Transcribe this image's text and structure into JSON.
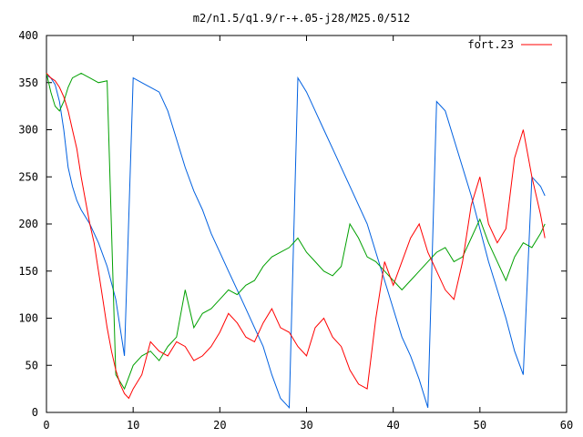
{
  "chart_data": {
    "type": "line",
    "title": "m2/n1.5/q1.9/r-+.05-j28/M25.0/512",
    "xlabel": "",
    "ylabel": "",
    "xlim": [
      0,
      60
    ],
    "ylim": [
      0,
      400
    ],
    "xticks": [
      0,
      10,
      20,
      30,
      40,
      50,
      60
    ],
    "yticks": [
      0,
      50,
      100,
      150,
      200,
      250,
      300,
      350,
      400
    ],
    "grid": false,
    "legend": {
      "placement": "top-right",
      "entries": [
        "fort.23"
      ]
    },
    "series": [
      {
        "name": "fort.23",
        "color": "#ff0000",
        "points": [
          [
            0,
            360
          ],
          [
            0.5,
            355
          ],
          [
            1.0,
            352
          ],
          [
            1.5,
            345
          ],
          [
            2.0,
            335
          ],
          [
            2.5,
            320
          ],
          [
            3.0,
            300
          ],
          [
            3.5,
            280
          ],
          [
            4.0,
            250
          ],
          [
            4.5,
            225
          ],
          [
            5.0,
            200
          ],
          [
            5.5,
            180
          ],
          [
            6.0,
            150
          ],
          [
            6.5,
            120
          ],
          [
            7.0,
            90
          ],
          [
            7.5,
            65
          ],
          [
            8.0,
            45
          ],
          [
            8.5,
            30
          ],
          [
            9.0,
            20
          ],
          [
            9.5,
            15
          ],
          [
            10.0,
            25
          ],
          [
            11.0,
            40
          ],
          [
            12.0,
            75
          ],
          [
            13.0,
            65
          ],
          [
            14.0,
            60
          ],
          [
            15.0,
            75
          ],
          [
            16.0,
            70
          ],
          [
            17.0,
            55
          ],
          [
            18.0,
            60
          ],
          [
            19.0,
            70
          ],
          [
            20.0,
            85
          ],
          [
            21.0,
            105
          ],
          [
            22.0,
            95
          ],
          [
            23.0,
            80
          ],
          [
            24.0,
            75
          ],
          [
            25.0,
            95
          ],
          [
            26.0,
            110
          ],
          [
            27.0,
            90
          ],
          [
            28.0,
            85
          ],
          [
            29.0,
            70
          ],
          [
            30.0,
            60
          ],
          [
            31.0,
            90
          ],
          [
            32.0,
            100
          ],
          [
            33.0,
            80
          ],
          [
            34.0,
            70
          ],
          [
            35.0,
            45
          ],
          [
            36.0,
            30
          ],
          [
            37.0,
            25
          ],
          [
            38.0,
            100
          ],
          [
            39.0,
            160
          ],
          [
            40.0,
            135
          ],
          [
            41.0,
            160
          ],
          [
            42.0,
            185
          ],
          [
            43.0,
            200
          ],
          [
            44.0,
            170
          ],
          [
            45.0,
            150
          ],
          [
            46.0,
            130
          ],
          [
            47.0,
            120
          ],
          [
            48.0,
            160
          ],
          [
            49.0,
            220
          ],
          [
            50.0,
            250
          ],
          [
            51.0,
            200
          ],
          [
            52.0,
            180
          ],
          [
            53.0,
            195
          ],
          [
            54.0,
            270
          ],
          [
            55.0,
            300
          ],
          [
            56.0,
            250
          ],
          [
            57.0,
            210
          ],
          [
            57.5,
            185
          ]
        ]
      },
      {
        "name": "",
        "color": "#00a000",
        "points": [
          [
            0,
            360
          ],
          [
            0.5,
            340
          ],
          [
            1.0,
            325
          ],
          [
            1.5,
            320
          ],
          [
            2.0,
            330
          ],
          [
            2.5,
            345
          ],
          [
            3.0,
            355
          ],
          [
            4.0,
            360
          ],
          [
            5.0,
            355
          ],
          [
            6.0,
            350
          ],
          [
            7.0,
            352
          ],
          [
            8.0,
            40
          ],
          [
            9.0,
            25
          ],
          [
            10.0,
            50
          ],
          [
            11.0,
            60
          ],
          [
            12.0,
            65
          ],
          [
            13.0,
            55
          ],
          [
            14.0,
            70
          ],
          [
            15.0,
            80
          ],
          [
            16.0,
            130
          ],
          [
            17.0,
            90
          ],
          [
            18.0,
            105
          ],
          [
            19.0,
            110
          ],
          [
            20.0,
            120
          ],
          [
            21.0,
            130
          ],
          [
            22.0,
            125
          ],
          [
            23.0,
            135
          ],
          [
            24.0,
            140
          ],
          [
            25.0,
            155
          ],
          [
            26.0,
            165
          ],
          [
            27.0,
            170
          ],
          [
            28.0,
            175
          ],
          [
            29.0,
            185
          ],
          [
            30.0,
            170
          ],
          [
            31.0,
            160
          ],
          [
            32.0,
            150
          ],
          [
            33.0,
            145
          ],
          [
            34.0,
            155
          ],
          [
            35.0,
            200
          ],
          [
            36.0,
            185
          ],
          [
            37.0,
            165
          ],
          [
            38.0,
            160
          ],
          [
            39.0,
            150
          ],
          [
            40.0,
            140
          ],
          [
            41.0,
            130
          ],
          [
            42.0,
            140
          ],
          [
            43.0,
            150
          ],
          [
            44.0,
            160
          ],
          [
            45.0,
            170
          ],
          [
            46.0,
            175
          ],
          [
            47.0,
            160
          ],
          [
            48.0,
            165
          ],
          [
            49.0,
            185
          ],
          [
            50.0,
            205
          ],
          [
            51.0,
            180
          ],
          [
            52.0,
            160
          ],
          [
            53.0,
            140
          ],
          [
            54.0,
            165
          ],
          [
            55.0,
            180
          ],
          [
            56.0,
            175
          ],
          [
            57.0,
            190
          ],
          [
            57.5,
            200
          ]
        ]
      },
      {
        "name": "",
        "color": "#0060e0",
        "points": [
          [
            0,
            358
          ],
          [
            0.5,
            355
          ],
          [
            1.0,
            348
          ],
          [
            1.5,
            330
          ],
          [
            2.0,
            300
          ],
          [
            2.5,
            260
          ],
          [
            3.0,
            240
          ],
          [
            3.5,
            225
          ],
          [
            4.0,
            215
          ],
          [
            5.0,
            200
          ],
          [
            6.0,
            180
          ],
          [
            7.0,
            155
          ],
          [
            8.0,
            120
          ],
          [
            9.0,
            60
          ],
          [
            10.0,
            355
          ],
          [
            11.0,
            350
          ],
          [
            12.0,
            345
          ],
          [
            13.0,
            340
          ],
          [
            14.0,
            320
          ],
          [
            15.0,
            290
          ],
          [
            16.0,
            260
          ],
          [
            17.0,
            235
          ],
          [
            18.0,
            215
          ],
          [
            19.0,
            190
          ],
          [
            20.0,
            170
          ],
          [
            21.0,
            150
          ],
          [
            22.0,
            130
          ],
          [
            23.0,
            110
          ],
          [
            24.0,
            90
          ],
          [
            25.0,
            70
          ],
          [
            26.0,
            40
          ],
          [
            27.0,
            15
          ],
          [
            28.0,
            5
          ],
          [
            29.0,
            355
          ],
          [
            30.0,
            340
          ],
          [
            31.0,
            320
          ],
          [
            32.0,
            300
          ],
          [
            33.0,
            280
          ],
          [
            34.0,
            260
          ],
          [
            35.0,
            240
          ],
          [
            36.0,
            220
          ],
          [
            37.0,
            200
          ],
          [
            38.0,
            170
          ],
          [
            39.0,
            140
          ],
          [
            40.0,
            110
          ],
          [
            41.0,
            80
          ],
          [
            42.0,
            60
          ],
          [
            43.0,
            35
          ],
          [
            44.0,
            5
          ],
          [
            45.0,
            330
          ],
          [
            46.0,
            320
          ],
          [
            47.0,
            290
          ],
          [
            48.0,
            260
          ],
          [
            49.0,
            230
          ],
          [
            50.0,
            195
          ],
          [
            51.0,
            160
          ],
          [
            52.0,
            130
          ],
          [
            53.0,
            100
          ],
          [
            54.0,
            65
          ],
          [
            55.0,
            40
          ],
          [
            56.0,
            250
          ],
          [
            57.0,
            240
          ],
          [
            57.5,
            230
          ]
        ]
      }
    ]
  }
}
